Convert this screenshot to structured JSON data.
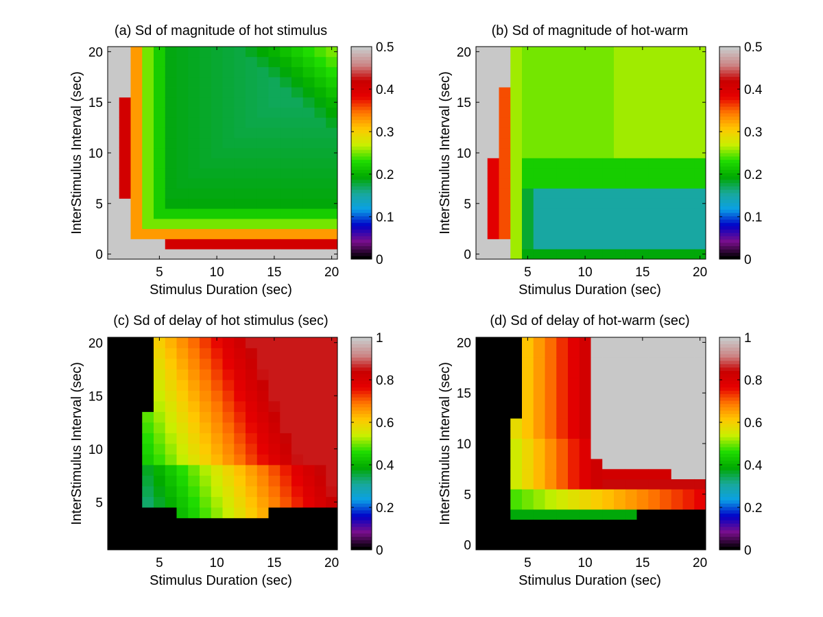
{
  "figure": {
    "background": "#ffffff",
    "no_data_color": "#c8c8c8",
    "out_of_range_color": "#000000"
  },
  "colormap": {
    "name": "spectral-like (black-purple-blue-cyan-green-yellow-orange-red-pink-grey)",
    "stops": [
      "#000000",
      "#7a0e8c",
      "#0000c8",
      "#0aa0e6",
      "#19a89a",
      "#00a800",
      "#20dc00",
      "#c8f000",
      "#ffc800",
      "#ff7800",
      "#e60000",
      "#c80000",
      "#cc8888",
      "#c8c8c8"
    ]
  },
  "chart_data": [
    {
      "id": "a",
      "type": "heatmap",
      "title": "(a) Sd of magnitude of hot stimulus",
      "xlabel": "Stimulus Duration (sec)",
      "ylabel": "InterStimulus Interval (sec)",
      "xticks": [
        5,
        10,
        15,
        20
      ],
      "yticks": [
        0,
        5,
        10,
        15,
        20
      ],
      "xlim": [
        0.5,
        20.5
      ],
      "ylim": [
        -0.5,
        20.5
      ],
      "x": [
        1,
        20
      ],
      "y": [
        0,
        20
      ],
      "colorbar": {
        "range": [
          0,
          0.5
        ],
        "ticks": [
          0,
          0.1,
          0.2,
          0.3,
          0.4,
          0.5
        ]
      },
      "pattern": "hot_magnitude"
    },
    {
      "id": "b",
      "type": "heatmap",
      "title": "(b) Sd of magnitude of hot-warm",
      "xlabel": "Stimulus Duration (sec)",
      "ylabel": "InterStimulus Interval (sec)",
      "xticks": [
        5,
        10,
        15,
        20
      ],
      "yticks": [
        0,
        5,
        10,
        15,
        20
      ],
      "xlim": [
        0.5,
        20.5
      ],
      "ylim": [
        -0.5,
        20.5
      ],
      "x": [
        1,
        20
      ],
      "y": [
        0,
        20
      ],
      "colorbar": {
        "range": [
          0,
          0.5
        ],
        "ticks": [
          0,
          0.1,
          0.2,
          0.3,
          0.4,
          0.5
        ]
      },
      "pattern": "hotwarm_magnitude"
    },
    {
      "id": "c",
      "type": "heatmap",
      "title": "(c) Sd of delay of hot stimulus (sec)",
      "xlabel": "Stimulus Duration (sec)",
      "ylabel": "InterStimulus Interval (sec)",
      "xticks": [
        5,
        10,
        15,
        20
      ],
      "yticks": [
        5,
        10,
        15,
        20
      ],
      "xlim": [
        0.5,
        20.5
      ],
      "ylim": [
        0.5,
        20.5
      ],
      "x": [
        1,
        20
      ],
      "y": [
        1,
        20
      ],
      "colorbar": {
        "range": [
          0,
          1
        ],
        "ticks": [
          0,
          0.2,
          0.4,
          0.6,
          0.8,
          1
        ]
      },
      "pattern": "hot_delay"
    },
    {
      "id": "d",
      "type": "heatmap",
      "title": "(d) Sd of delay of hot-warm (sec)",
      "xlabel": "Stimulus Duration (sec)",
      "ylabel": "InterStimulus Interval (sec)",
      "xticks": [
        5,
        10,
        15,
        20
      ],
      "yticks": [
        0,
        5,
        10,
        15,
        20
      ],
      "xlim": [
        0.5,
        20.5
      ],
      "ylim": [
        -0.5,
        20.5
      ],
      "x": [
        1,
        20
      ],
      "y": [
        0,
        20
      ],
      "colorbar": {
        "range": [
          0,
          1
        ],
        "ticks": [
          0,
          0.2,
          0.4,
          0.6,
          0.8,
          1
        ]
      },
      "pattern": "hotwarm_delay"
    }
  ]
}
